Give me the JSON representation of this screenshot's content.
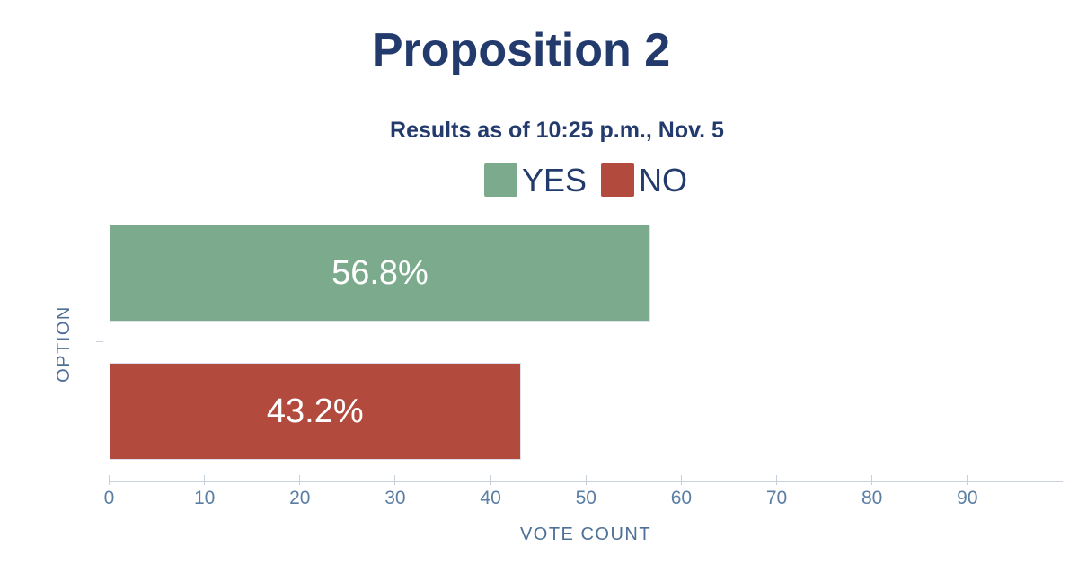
{
  "page": {
    "background": "#ffffff"
  },
  "chart_data": {
    "type": "bar",
    "orientation": "horizontal",
    "title": "Proposition 2",
    "subtitle": "Results as of 10:25 p.m., Nov. 5",
    "categories": [
      "YES",
      "NO"
    ],
    "values": [
      56.8,
      43.2
    ],
    "value_labels": [
      "56.8%",
      "43.2%"
    ],
    "xlabel": "VOTE COUNT",
    "ylabel": "OPTION",
    "xlim": [
      0,
      100
    ],
    "xticks": [
      0,
      10,
      20,
      30,
      40,
      50,
      60,
      70,
      80,
      90
    ],
    "grid": false,
    "legend": {
      "position": "top",
      "entries": [
        {
          "label": "YES",
          "color": "#7bab8c"
        },
        {
          "label": "NO",
          "color": "#b24a3e"
        }
      ]
    },
    "colors": {
      "title": "#233a6d",
      "subtitle": "#233a6d",
      "legend_text": "#233a6d",
      "bar_yes": "#7bab8c",
      "bar_no": "#b24a3e",
      "value_label": "#ffffff",
      "axis_line": "#c9d3dd",
      "tick_text": "#5b7ea4",
      "axis_title_text": "#4f7096"
    }
  }
}
